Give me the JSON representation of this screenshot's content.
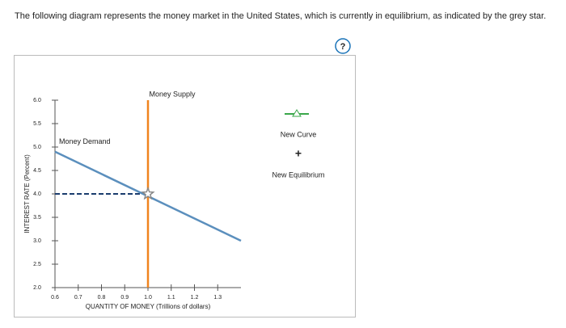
{
  "question": "The following diagram represents the money market in the United States, which is currently in equilibrium, as indicated by the grey star.",
  "help_label": "?",
  "palette": [
    "New Curve",
    "New Equilibrium"
  ],
  "chart_data": {
    "type": "line",
    "xlabel": "QUANTITY OF MONEY (Trillions of dollars)",
    "ylabel": "INTEREST RATE (Percent)",
    "xlim": [
      0.6,
      1.4
    ],
    "ylim": [
      2.0,
      6.0
    ],
    "xticks": [
      0.6,
      0.7,
      0.8,
      0.9,
      {
        "value": 1.0,
        "label": "1.0"
      },
      1.1,
      1.2,
      1.3
    ],
    "yticks": [
      {
        "value": 2.0,
        "label": "2.0"
      },
      2.5,
      {
        "value": 3.0,
        "label": "3.0"
      },
      3.5,
      {
        "value": 4.0,
        "label": "4.0"
      },
      4.5,
      {
        "value": 5.0,
        "label": "5.0"
      },
      5.5,
      {
        "value": 6.0,
        "label": "6.0"
      }
    ],
    "series": [
      {
        "name": "Money Demand",
        "color": "#5b8fbd",
        "x": [
          0.6,
          1.4
        ],
        "values": [
          4.9,
          3.0
        ]
      },
      {
        "name": "Money Supply",
        "color": "#f0841e",
        "x": [
          1.0,
          1.0
        ],
        "values": [
          2.0,
          6.0
        ]
      }
    ],
    "equilibrium": {
      "x": 1.0,
      "y": 4.0,
      "color": "#888888"
    }
  }
}
